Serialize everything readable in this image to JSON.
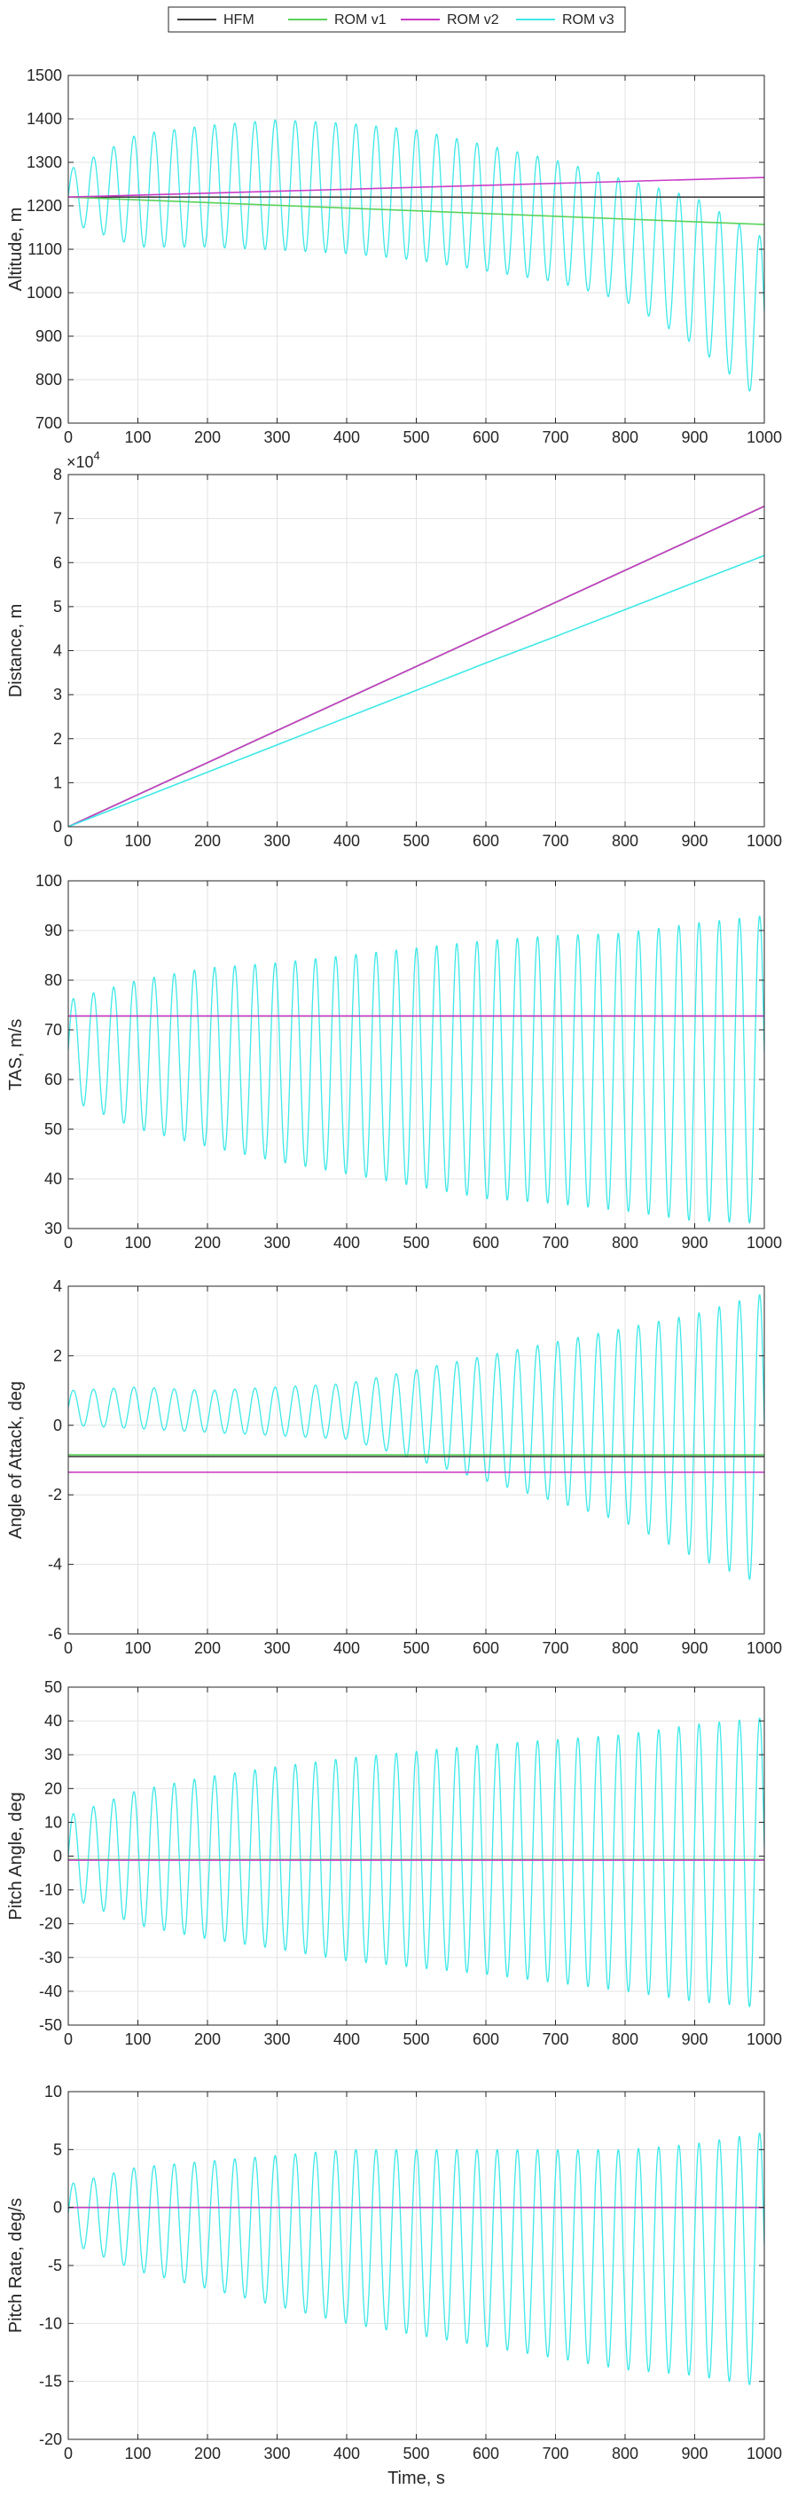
{
  "legend": {
    "items": [
      {
        "label": "HFM",
        "color": "#404040"
      },
      {
        "label": "ROM v1",
        "color": "#5ad25a"
      },
      {
        "label": "ROM v2",
        "color": "#c83cc8"
      },
      {
        "label": "ROM v3",
        "color": "#3ee8e8"
      }
    ]
  },
  "chart_data": [
    {
      "type": "line",
      "title": "",
      "xlabel": "",
      "ylabel": "Altitude, m",
      "xlim": [
        0,
        1000
      ],
      "ylim": [
        700,
        1500
      ],
      "xticks": [
        "0",
        "100",
        "200",
        "300",
        "400",
        "500",
        "600",
        "700",
        "800",
        "900",
        "1000"
      ],
      "yticks": [
        "700",
        "800",
        "900",
        "1000",
        "1100",
        "1200",
        "1300",
        "1400",
        "1500"
      ],
      "grid": true,
      "series": [
        {
          "name": "HFM",
          "color": "#404040",
          "x": [
            0,
            1000
          ],
          "y": [
            1220,
            1220
          ]
        },
        {
          "name": "ROM v1",
          "color": "#5ad25a",
          "x": [
            0,
            1000
          ],
          "y": [
            1220,
            1157
          ]
        },
        {
          "name": "ROM v2",
          "color": "#c83cc8",
          "x": [
            0,
            1000
          ],
          "y": [
            1220,
            1265
          ]
        },
        {
          "name": "ROM v3",
          "color": "#3ee8e8",
          "oscillation": {
            "period": 29,
            "x": [
              0,
              100,
              200,
              300,
              400,
              500,
              600,
              700,
              800,
              900,
              1000
            ],
            "center": [
              1222,
              1235,
              1245,
              1248,
              1240,
              1225,
              1195,
              1165,
              1120,
              1050,
              935
            ],
            "half_amplitude": [
              60,
              130,
              140,
              150,
              150,
              150,
              145,
              140,
              140,
              170,
              190
            ]
          }
        }
      ]
    },
    {
      "type": "line",
      "title": "",
      "xlabel": "",
      "ylabel": "Distance, m",
      "exponent": "×10",
      "exponent_power": "4",
      "xlim": [
        0,
        1000
      ],
      "ylim": [
        0,
        8
      ],
      "xticks": [
        "0",
        "100",
        "200",
        "300",
        "400",
        "500",
        "600",
        "700",
        "800",
        "900",
        "1000"
      ],
      "yticks": [
        "0",
        "1",
        "2",
        "3",
        "4",
        "5",
        "6",
        "7",
        "8"
      ],
      "grid": true,
      "series": [
        {
          "name": "HFM",
          "color": "#404040",
          "x": [
            0,
            1000
          ],
          "y": [
            0,
            7.28
          ]
        },
        {
          "name": "ROM v1",
          "color": "#5ad25a",
          "x": [
            0,
            1000
          ],
          "y": [
            0,
            7.28
          ]
        },
        {
          "name": "ROM v2",
          "color": "#c83cc8",
          "x": [
            0,
            1000
          ],
          "y": [
            0,
            7.28
          ]
        },
        {
          "name": "ROM v3",
          "color": "#3ee8e8",
          "x": [
            0,
            100,
            200,
            300,
            400,
            500,
            600,
            700,
            800,
            900,
            1000
          ],
          "y": [
            0,
            0.62,
            1.24,
            1.86,
            2.48,
            3.1,
            3.72,
            4.32,
            4.93,
            5.55,
            6.16
          ]
        }
      ]
    },
    {
      "type": "line",
      "title": "",
      "xlabel": "",
      "ylabel": "TAS, m/s",
      "xlim": [
        0,
        1000
      ],
      "ylim": [
        30,
        100
      ],
      "xticks": [
        "0",
        "100",
        "200",
        "300",
        "400",
        "500",
        "600",
        "700",
        "800",
        "900",
        "1000"
      ],
      "yticks": [
        "30",
        "40",
        "50",
        "60",
        "70",
        "80",
        "90",
        "100"
      ],
      "grid": true,
      "series": [
        {
          "name": "HFM",
          "color": "#404040",
          "x": [
            0,
            1000
          ],
          "y": [
            72.8,
            72.8
          ]
        },
        {
          "name": "ROM v1",
          "color": "#5ad25a",
          "x": [
            0,
            1000
          ],
          "y": [
            72.8,
            72.8
          ]
        },
        {
          "name": "ROM v2",
          "color": "#c83cc8",
          "x": [
            0,
            1000
          ],
          "y": [
            72.8,
            72.8
          ]
        },
        {
          "name": "ROM v3",
          "color": "#3ee8e8",
          "oscillation": {
            "period": 29,
            "x": [
              0,
              100,
              200,
              300,
              400,
              500,
              600,
              700,
              800,
              900,
              1000
            ],
            "center": [
              66,
              65,
              64.5,
              63.5,
              63,
              62.5,
              62,
              62,
              61.5,
              61.5,
              62
            ],
            "half_amplitude": [
              10,
              15,
              18,
              20,
              22,
              24,
              26,
              27,
              28,
              30,
              31
            ]
          }
        }
      ]
    },
    {
      "type": "line",
      "title": "",
      "xlabel": "",
      "ylabel": "Angle of Attack, deg",
      "xlim": [
        0,
        1000
      ],
      "ylim": [
        -6,
        4
      ],
      "xticks": [
        "0",
        "100",
        "200",
        "300",
        "400",
        "500",
        "600",
        "700",
        "800",
        "900",
        "1000"
      ],
      "yticks": [
        "-6",
        "-4",
        "-2",
        "0",
        "2",
        "4"
      ],
      "grid": true,
      "series": [
        {
          "name": "HFM",
          "color": "#404040",
          "x": [
            0,
            1000
          ],
          "y": [
            -0.9,
            -0.9
          ]
        },
        {
          "name": "ROM v1",
          "color": "#5ad25a",
          "x": [
            0,
            1000
          ],
          "y": [
            -0.85,
            -0.85
          ]
        },
        {
          "name": "ROM v2",
          "color": "#c83cc8",
          "x": [
            0,
            1000
          ],
          "y": [
            -1.35,
            -1.35
          ]
        },
        {
          "name": "ROM v3",
          "color": "#3ee8e8",
          "oscillation": {
            "period": 29,
            "x": [
              0,
              100,
              200,
              300,
              400,
              500,
              600,
              700,
              800,
              900,
              1000
            ],
            "center": [
              0.5,
              0.5,
              0.4,
              0.4,
              0.4,
              0.3,
              0.2,
              0.1,
              0,
              -0.3,
              -0.4
            ],
            "half_amplitude": [
              0.5,
              0.6,
              0.6,
              0.7,
              0.8,
              1.3,
              1.8,
              2.3,
              2.8,
              3.5,
              4.2
            ]
          }
        }
      ]
    },
    {
      "type": "line",
      "title": "",
      "xlabel": "",
      "ylabel": "Pitch Angle, deg",
      "xlim": [
        0,
        1000
      ],
      "ylim": [
        -50,
        50
      ],
      "xticks": [
        "0",
        "100",
        "200",
        "300",
        "400",
        "500",
        "600",
        "700",
        "800",
        "900",
        "1000"
      ],
      "yticks": [
        "-50",
        "-40",
        "-30",
        "-20",
        "-10",
        "0",
        "10",
        "20",
        "30",
        "40",
        "50"
      ],
      "grid": true,
      "series": [
        {
          "name": "HFM",
          "color": "#404040",
          "x": [
            0,
            1000
          ],
          "y": [
            -1,
            -1
          ]
        },
        {
          "name": "ROM v1",
          "color": "#5ad25a",
          "x": [
            0,
            1000
          ],
          "y": [
            -1,
            -1
          ]
        },
        {
          "name": "ROM v2",
          "color": "#c83cc8",
          "x": [
            0,
            1000
          ],
          "y": [
            -1.2,
            -1.2
          ]
        },
        {
          "name": "ROM v3",
          "color": "#3ee8e8",
          "oscillation": {
            "period": 29,
            "x": [
              0,
              100,
              200,
              300,
              400,
              500,
              600,
              700,
              800,
              900,
              1000
            ],
            "center": [
              0,
              -0.5,
              -0.5,
              -0.5,
              -1,
              -1,
              -1,
              -1.5,
              -2,
              -2,
              -2
            ],
            "half_amplitude": [
              12,
              20,
              24,
              27,
              30,
              32,
              34,
              36,
              38,
              41,
              43
            ]
          }
        }
      ]
    },
    {
      "type": "line",
      "title": "",
      "xlabel": "Time, s",
      "ylabel": "Pitch Rate, deg/s",
      "xlim": [
        0,
        1000
      ],
      "ylim": [
        -20,
        10
      ],
      "xticks": [
        "0",
        "100",
        "200",
        "300",
        "400",
        "500",
        "600",
        "700",
        "800",
        "900",
        "1000"
      ],
      "yticks": [
        "-20",
        "-15",
        "-10",
        "-5",
        "0",
        "5",
        "10"
      ],
      "grid": true,
      "series": [
        {
          "name": "HFM",
          "color": "#404040",
          "x": [
            0,
            1000
          ],
          "y": [
            0,
            0
          ]
        },
        {
          "name": "ROM v1",
          "color": "#5ad25a",
          "x": [
            0,
            1000
          ],
          "y": [
            0,
            0
          ]
        },
        {
          "name": "ROM v2",
          "color": "#c83cc8",
          "x": [
            0,
            1000
          ],
          "y": [
            0,
            0
          ]
        },
        {
          "name": "ROM v3",
          "color": "#3ee8e8",
          "oscillation": {
            "period": 29,
            "x": [
              0,
              100,
              200,
              300,
              400,
              500,
              600,
              700,
              800,
              900,
              1000
            ],
            "center": [
              -0.5,
              -1,
              -1.5,
              -2,
              -2.5,
              -3,
              -3.5,
              -4,
              -4.5,
              -4.5,
              -4.5
            ],
            "half_amplitude": [
              2.5,
              4.5,
              5.5,
              6.5,
              7.5,
              8,
              8.5,
              9,
              9.5,
              10,
              11
            ]
          }
        }
      ]
    }
  ]
}
